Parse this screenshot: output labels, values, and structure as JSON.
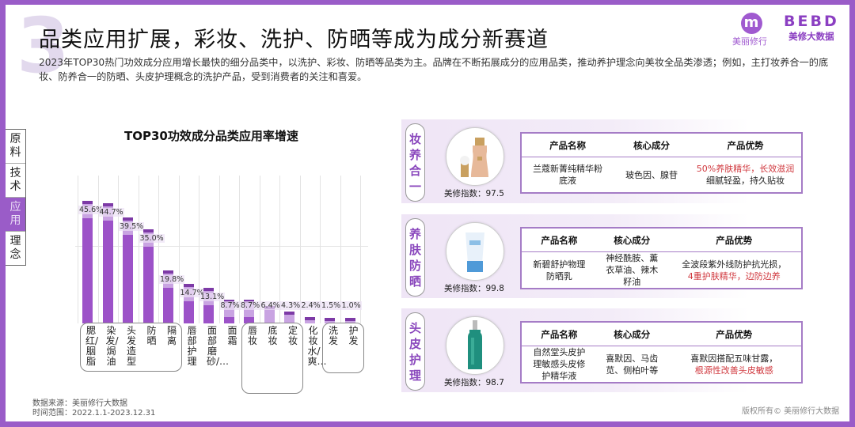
{
  "header": {
    "section_number": "3",
    "title": "品类应用扩展，彩妆、洗护、防晒等成为成分新赛道",
    "subtitle": "2023年TOP30热门功效成分应用增长最快的细分品类中，以洗护、彩妆、防晒等品类为主。品牌在不断拓展成分的应用品类，推动养护理念向美妆全品类渗透；例如，主打妆养合一的底妆、防养合一的防晒、头皮护理概念的洗护产品，受到消费者的关注和喜爱。"
  },
  "logos": {
    "left_mark": "m",
    "left_text": "美丽修行",
    "right_mark": "BEBD",
    "right_text": "美修大数据"
  },
  "sidenav": {
    "items": [
      {
        "label": "原料",
        "active": false
      },
      {
        "label": "技术",
        "active": false
      },
      {
        "label": "应用",
        "active": true
      },
      {
        "label": "理念",
        "active": false
      }
    ]
  },
  "chart_data": {
    "type": "bar",
    "title": "TOP30功效成分品类应用率增速",
    "xlabel": "",
    "ylabel": "",
    "categories": [
      "腮红/胭脂",
      "染发/焗油",
      "头发造型",
      "防晒",
      "隔离",
      "唇部护理",
      "面部磨砂/…",
      "面霜",
      "唇妆",
      "底妆",
      "定妆",
      "化妆水/爽…",
      "洗发",
      "护发"
    ],
    "values": [
      45.6,
      44.7,
      39.5,
      35.0,
      19.8,
      14.7,
      13.1,
      8.7,
      8.7,
      6.4,
      4.3,
      2.4,
      1.5,
      1.0
    ],
    "labels": [
      "45.6%",
      "44.7%",
      "39.5%",
      "35.0%",
      "19.8%",
      "14.7%",
      "13.1%",
      "8.7%",
      "8.7%",
      "6.4%",
      "4.3%",
      "2.4%",
      "1.5%",
      "1.0%"
    ],
    "ylim": [
      0,
      50
    ],
    "grid": true,
    "legend": "none",
    "groups": [
      {
        "name": "group-1",
        "members": [
          "腮红/胭脂",
          "染发/焗油",
          "头发造型",
          "防晒",
          "隔离"
        ]
      },
      {
        "name": "group-2",
        "members": [
          "唇妆",
          "底妆",
          "定妆"
        ]
      },
      {
        "name": "group-3",
        "members": [
          "洗发",
          "护发"
        ]
      }
    ],
    "bar_color": "#9c52c8"
  },
  "products": {
    "headers": {
      "name": "产品名称",
      "ingredients": "核心成分",
      "advantage": "产品优势"
    },
    "score_label": "美修指数：",
    "items": [
      {
        "tag": "妆养合一",
        "name": "兰蔻新菁纯精华粉底液",
        "ingredients": "玻色因、腺苷",
        "advantage_highlight": "50%养肤精华，长效滋润",
        "advantage_normal": "细腻轻盈，持久贴妆",
        "score": "97.5"
      },
      {
        "tag": "养肤防晒",
        "name": "新碧舒护物理防晒乳",
        "ingredients": "神经酰胺、薰衣草油、辣木籽油",
        "advantage_normal": "全波段紫外线防护抗光损，",
        "advantage_highlight": "4重护肤精华，边防边养",
        "score": "99.8"
      },
      {
        "tag": "头皮护理",
        "name": "自然堂头皮护理敏感头皮修护精华液",
        "ingredients": "喜默因、马齿苋、侧柏叶等",
        "advantage_normal": "喜默因搭配五味甘露，",
        "advantage_highlight": "根源性改善头皮敏感",
        "score": "98.7"
      }
    ]
  },
  "footer": {
    "source": "数据来源：美丽修行大数据",
    "period": "时间范围：2022.1.1-2023.12.31",
    "copyright": "版权所有© 美丽修行大数据"
  },
  "colors": {
    "brand": "#9a5cc8",
    "highlight_red": "#d0383e"
  }
}
